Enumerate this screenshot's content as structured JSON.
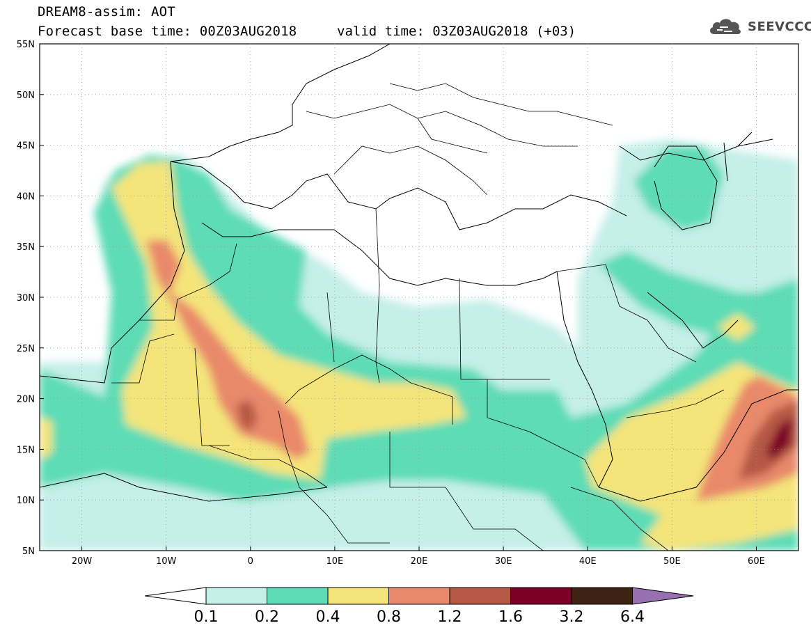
{
  "header": {
    "title": "DREAM8-assim: AOT",
    "base_time_label": "Forecast base time: 00Z03AUG2018",
    "valid_time_label": "valid time: 03Z03AUG2018 (+03)"
  },
  "logo": {
    "text": "SEEVCCC",
    "icon": "cloud-icon"
  },
  "map": {
    "lat_labels": [
      "55N",
      "50N",
      "45N",
      "40N",
      "35N",
      "30N",
      "25N",
      "20N",
      "15N",
      "10N",
      "5N"
    ],
    "lon_labels": [
      "20W",
      "10W",
      "0",
      "10E",
      "20E",
      "30E",
      "40E",
      "50E",
      "60E"
    ],
    "extent": {
      "lon": [
        -25,
        65
      ],
      "lat": [
        5,
        55
      ]
    }
  },
  "colorbar": {
    "labels": [
      "0.1",
      "0.2",
      "0.4",
      "0.8",
      "1.2",
      "1.6",
      "3.2",
      "6.4"
    ],
    "colors": [
      "#ffffff",
      "#c5efe9",
      "#5ddcb6",
      "#f4e47a",
      "#e9896b",
      "#b55845",
      "#7b0028",
      "#3c2314",
      "#9670b0"
    ]
  }
}
